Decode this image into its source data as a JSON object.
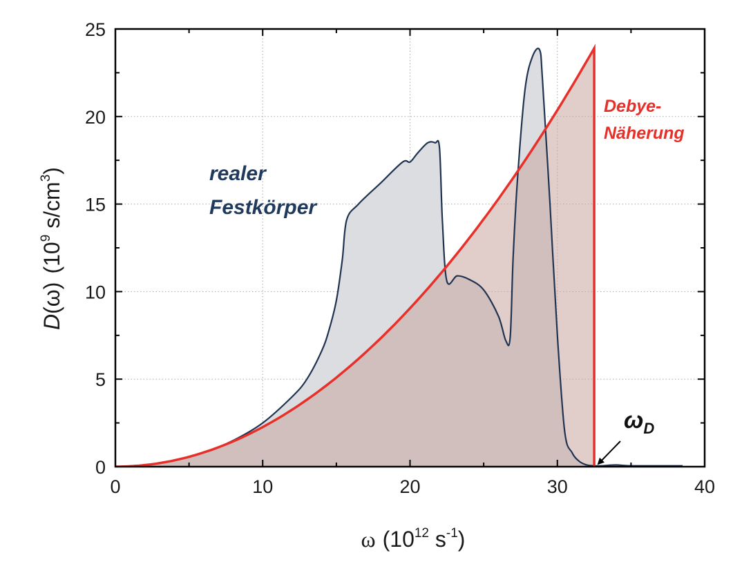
{
  "chart_data": {
    "type": "area",
    "xlabel_symbol": "ω",
    "xlabel_unit_base": "(10",
    "xlabel_unit_exp": "12",
    "xlabel_unit_rest": " s",
    "xlabel_unit_exp2": "-1",
    "xlabel_unit_close": ")",
    "ylabel_func": "D",
    "ylabel_arg": "(ω)",
    "ylabel_unit_base": "(10",
    "ylabel_unit_exp": "9",
    "ylabel_unit_rest": " s/cm",
    "ylabel_unit_exp2": "3",
    "ylabel_unit_close": ")",
    "xlim": [
      0,
      40
    ],
    "ylim": [
      0,
      25
    ],
    "x_ticks": [
      0,
      10,
      20,
      30,
      40
    ],
    "y_ticks": [
      0,
      5,
      10,
      15,
      20,
      25
    ],
    "grid": true,
    "colors": {
      "real_line": "#1f3350",
      "real_fill": "#dcdde1",
      "debye_line": "#e8302a",
      "debye_fill": "#c9a6a0",
      "overlap_fill": "#c3b1ab",
      "label_real": "#1f3a5c",
      "label_debye": "#e8302a"
    },
    "series": [
      {
        "id": "real",
        "x": [
          0,
          2,
          4,
          6,
          8,
          10,
          12,
          13,
          14,
          14.5,
          15,
          15.4,
          15.7,
          16.5,
          18,
          19.5,
          20,
          20.5,
          21.2,
          21.7,
          22,
          22.2,
          22.5,
          23.2,
          24,
          25,
          26,
          26.5,
          26.8,
          27,
          27.3,
          27.8,
          28.3,
          28.8,
          29,
          29.5,
          30,
          30.5,
          31,
          31.5,
          32,
          32.5,
          33,
          34,
          35,
          38.5
        ],
        "y": [
          0,
          0.1,
          0.35,
          0.8,
          1.5,
          2.5,
          4.0,
          5.0,
          6.6,
          7.8,
          9.5,
          11.8,
          14.1,
          15.0,
          16.2,
          17.4,
          17.4,
          17.9,
          18.5,
          18.5,
          18.2,
          14.0,
          10.6,
          10.9,
          10.7,
          10.1,
          8.6,
          7.2,
          7.4,
          12.0,
          16.5,
          21.5,
          23.4,
          23.8,
          22.0,
          15.0,
          7.5,
          2.0,
          0.8,
          0.3,
          0.1,
          0.05,
          0.05,
          0.1,
          0.05,
          0.05
        ]
      },
      {
        "id": "debye",
        "omega_d": 32.5,
        "d_max": 23.9
      }
    ],
    "annotations": [
      {
        "id": "real-label",
        "lines": [
          "realer",
          "Festkörper"
        ]
      },
      {
        "id": "debye-label",
        "lines": [
          "Debye-",
          "Näherung"
        ]
      },
      {
        "id": "omega-d",
        "symbol": "ω",
        "subscript": "D",
        "x": 32.5
      }
    ]
  }
}
